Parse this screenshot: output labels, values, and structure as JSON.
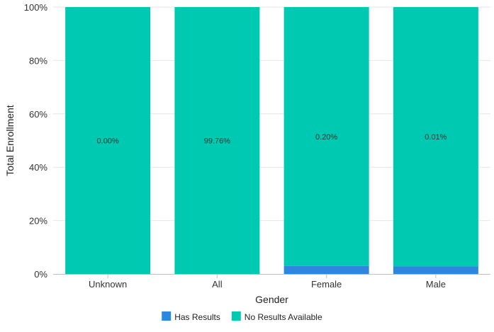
{
  "chart_data": {
    "type": "bar",
    "stacked": true,
    "normalized": true,
    "categories": [
      "Unknown",
      "All",
      "Female",
      "Male"
    ],
    "series": [
      {
        "name": "Has Results",
        "color": "#2e86de",
        "values": [
          0.0,
          0.0,
          3.0,
          2.8
        ]
      },
      {
        "name": "No Results Available",
        "color": "#00c9b1",
        "values": [
          100.0,
          100.0,
          97.0,
          97.2
        ]
      }
    ],
    "data_labels": [
      "0.00%",
      "99.76%",
      "0.20%",
      "0.01%"
    ],
    "xlabel": "Gender",
    "ylabel": "Total Enrollment",
    "ylim": [
      0,
      100
    ],
    "yticks": [
      "0%",
      "20%",
      "40%",
      "60%",
      "80%",
      "100%"
    ],
    "grid": true,
    "legend_position": "bottom"
  }
}
